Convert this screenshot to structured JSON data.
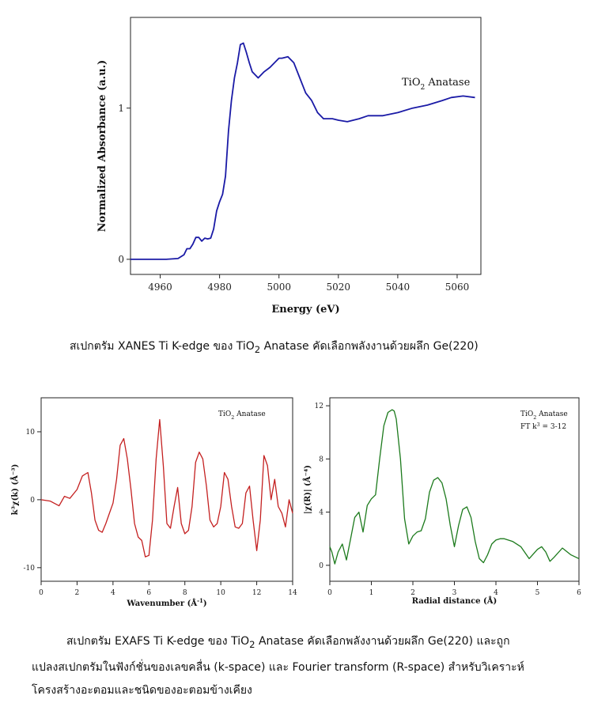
{
  "chart_data": [
    {
      "type": "line",
      "xlabel": "Energy (eV)",
      "ylabel": "Normalized Absorbance (a.u.)",
      "xlim": [
        4950,
        5068
      ],
      "ylim": [
        -0.1,
        1.6
      ],
      "xticks": [
        4960,
        4980,
        5000,
        5020,
        5040,
        5060
      ],
      "yticks": [
        0,
        1
      ],
      "annotation": {
        "main": "TiO",
        "sub": "2",
        "rest": " Anatase"
      },
      "color": "#1a1aa6",
      "series": [
        {
          "x": [
            4950,
            4962,
            4966,
            4968,
            4969,
            4970,
            4971,
            4972,
            4973,
            4974,
            4975,
            4976,
            4977,
            4978,
            4979,
            4980,
            4981,
            4982,
            4983,
            4984,
            4985,
            4986,
            4987,
            4988,
            4989,
            4990,
            4991,
            4993,
            4995,
            4997,
            4999,
            5000,
            5001,
            5003,
            5005,
            5007,
            5009,
            5011,
            5013,
            5015,
            5018,
            5020,
            5023,
            5027,
            5030,
            5035,
            5040,
            5045,
            5050,
            5055,
            5058,
            5062,
            5066
          ],
          "y": [
            0,
            0,
            0.005,
            0.03,
            0.07,
            0.07,
            0.1,
            0.145,
            0.145,
            0.12,
            0.14,
            0.135,
            0.14,
            0.2,
            0.32,
            0.38,
            0.43,
            0.55,
            0.85,
            1.05,
            1.2,
            1.3,
            1.42,
            1.43,
            1.37,
            1.3,
            1.24,
            1.2,
            1.24,
            1.27,
            1.31,
            1.33,
            1.33,
            1.34,
            1.3,
            1.2,
            1.1,
            1.05,
            0.97,
            0.93,
            0.93,
            0.92,
            0.91,
            0.93,
            0.95,
            0.95,
            0.97,
            1.0,
            1.02,
            1.05,
            1.07,
            1.08,
            1.07
          ]
        }
      ]
    },
    {
      "type": "line",
      "xlabel_main": "Wavenumber (Å",
      "xlabel_sup": "-1",
      "xlabel_end": ")",
      "ylabel": "k³χ(k) (Å⁻³)",
      "xlim": [
        0,
        14
      ],
      "ylim": [
        -12,
        15
      ],
      "xticks": [
        0,
        2,
        4,
        6,
        8,
        10,
        12,
        14
      ],
      "yticks": [
        -10,
        0,
        10
      ],
      "annotation": {
        "main": "TiO",
        "sub": "2",
        "rest": " Anatase"
      },
      "color": "#c42020",
      "series": [
        {
          "x": [
            0,
            0.5,
            1,
            1.3,
            1.6,
            2,
            2.3,
            2.6,
            2.8,
            3,
            3.2,
            3.4,
            3.6,
            3.8,
            4,
            4.2,
            4.4,
            4.6,
            4.8,
            5,
            5.2,
            5.4,
            5.6,
            5.8,
            6,
            6.2,
            6.4,
            6.6,
            6.8,
            7,
            7.2,
            7.4,
            7.6,
            7.8,
            8,
            8.2,
            8.4,
            8.6,
            8.8,
            9,
            9.2,
            9.4,
            9.6,
            9.8,
            10,
            10.2,
            10.4,
            10.6,
            10.8,
            11,
            11.2,
            11.4,
            11.6,
            11.8,
            12,
            12.2,
            12.4,
            12.6,
            12.8,
            13,
            13.2,
            13.4,
            13.6,
            13.8,
            14
          ],
          "y": [
            0,
            -0.2,
            -0.9,
            0.5,
            0.2,
            1.5,
            3.5,
            4,
            1,
            -3,
            -4.5,
            -4.8,
            -3.5,
            -2,
            -0.5,
            3,
            8,
            9,
            6,
            1.5,
            -3.5,
            -5.5,
            -6,
            -8.4,
            -8.2,
            -3,
            6,
            11.8,
            5,
            -3.5,
            -4.2,
            -1,
            1.8,
            -3.5,
            -5,
            -4.5,
            -1,
            5.5,
            7,
            6,
            2,
            -3,
            -4,
            -3.5,
            -1,
            4,
            3,
            -1,
            -4,
            -4.2,
            -3.5,
            1,
            2,
            -3,
            -7.5,
            -3,
            6.5,
            5,
            0,
            3,
            -1,
            -2,
            -4,
            0,
            -2
          ]
        }
      ]
    },
    {
      "type": "line",
      "xlabel": "Radial distance (Å)",
      "ylabel": "|χ(R)| (Å⁻⁴)",
      "xlim": [
        0,
        6
      ],
      "ylim": [
        -1.2,
        12.6
      ],
      "xticks": [
        0,
        1,
        2,
        3,
        4,
        5,
        6
      ],
      "yticks": [
        0,
        4,
        8,
        12
      ],
      "annotation": {
        "main": "TiO",
        "sub": "2",
        "rest": " Anatase"
      },
      "annotation2": {
        "main": "FT k",
        "sup": "3",
        "rest": " = 3-12"
      },
      "color": "#1c7a1c",
      "series": [
        {
          "x": [
            0,
            0.05,
            0.12,
            0.2,
            0.3,
            0.4,
            0.5,
            0.6,
            0.7,
            0.8,
            0.9,
            1.0,
            1.1,
            1.2,
            1.3,
            1.4,
            1.5,
            1.55,
            1.6,
            1.7,
            1.8,
            1.9,
            2.0,
            2.1,
            2.2,
            2.3,
            2.4,
            2.5,
            2.6,
            2.7,
            2.8,
            2.9,
            3.0,
            3.1,
            3.2,
            3.3,
            3.4,
            3.5,
            3.6,
            3.7,
            3.8,
            3.9,
            4.0,
            4.1,
            4.2,
            4.4,
            4.6,
            4.8,
            5.0,
            5.1,
            5.2,
            5.3,
            5.4,
            5.6,
            5.8,
            6.0
          ],
          "y": [
            1.4,
            1.0,
            0.1,
            1.0,
            1.6,
            0.4,
            2.0,
            3.6,
            4.0,
            2.5,
            4.5,
            5.0,
            5.3,
            8.0,
            10.5,
            11.5,
            11.7,
            11.6,
            11.0,
            8.0,
            3.5,
            1.6,
            2.2,
            2.5,
            2.6,
            3.5,
            5.5,
            6.4,
            6.6,
            6.2,
            5.0,
            3.0,
            1.4,
            3.0,
            4.2,
            4.4,
            3.6,
            1.8,
            0.5,
            0.2,
            0.8,
            1.6,
            1.9,
            2.0,
            2.0,
            1.8,
            1.4,
            0.5,
            1.2,
            1.4,
            1.0,
            0.3,
            0.6,
            1.3,
            0.8,
            0.5
          ]
        }
      ]
    }
  ],
  "captions": {
    "xanes": {
      "pre": "สเปกตรัม XANES Ti K-edge ของ TiO",
      "sub": "2",
      "post": " Anatase คัดเลือกพลังงานด้วยผลึก Ge(220)"
    },
    "exafs_line1_pre": "สเปกตรัม EXAFS Ti K-edge ของ TiO",
    "exafs_line1_sub": "2",
    "exafs_line1_post": " Anatase คัดเลือกพลังงานด้วยผลึก Ge(220) และถูก",
    "exafs_line2": "แปลงสเปกตรัมในฟังก์ชั่นของเลขคลื่น (k-space) และ Fourier transform (R-space) สำหรับวิเคราะห์",
    "exafs_line3": "โครงสร้างอะตอมและชนิดของอะตอมข้างเคียง"
  }
}
